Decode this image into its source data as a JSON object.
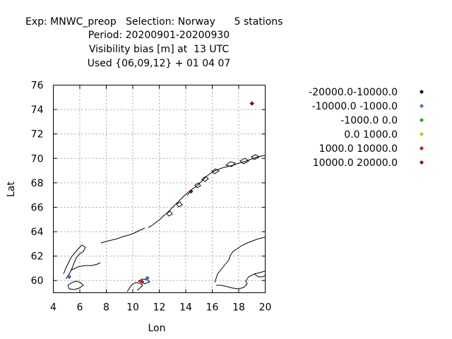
{
  "chart_data": {
    "type": "scatter",
    "title_lines": [
      "Exp: MNWC_preop   Selection: Norway      5 stations",
      "Period: 20200901-20200930",
      "Visibility bias [m] at  13 UTC",
      "Used {06,09,12} + 01 04 07"
    ],
    "xlabel": "Lon",
    "ylabel": "Lat",
    "xlim": [
      4,
      20
    ],
    "ylim": [
      59,
      76
    ],
    "x_ticks": [
      4,
      6,
      8,
      10,
      12,
      14,
      16,
      18,
      20
    ],
    "y_ticks": [
      60,
      62,
      64,
      66,
      68,
      70,
      72,
      74,
      76
    ],
    "grid": true,
    "legend_position": "right",
    "series": [
      {
        "name": "-20000.0-10000.0",
        "color": "#000000",
        "points": []
      },
      {
        "name": "-10000.0 -1000.0",
        "color": "#3a6fd8",
        "points": [
          [
            5.2,
            60.3
          ],
          [
            11.1,
            60.2
          ]
        ]
      },
      {
        "name": "-1000.0 0.0",
        "color": "#00b400",
        "points": []
      },
      {
        "name": "0.0 1000.0",
        "color": "#c8c800",
        "points": []
      },
      {
        "name": "1000.0 10000.0",
        "color": "#e00000",
        "points": [
          [
            10.7,
            59.9
          ]
        ]
      },
      {
        "name": "10000.0 20000.0",
        "color": "#8b0000",
        "points": [
          [
            14.4,
            67.3
          ],
          [
            19.0,
            74.5
          ]
        ]
      }
    ]
  }
}
